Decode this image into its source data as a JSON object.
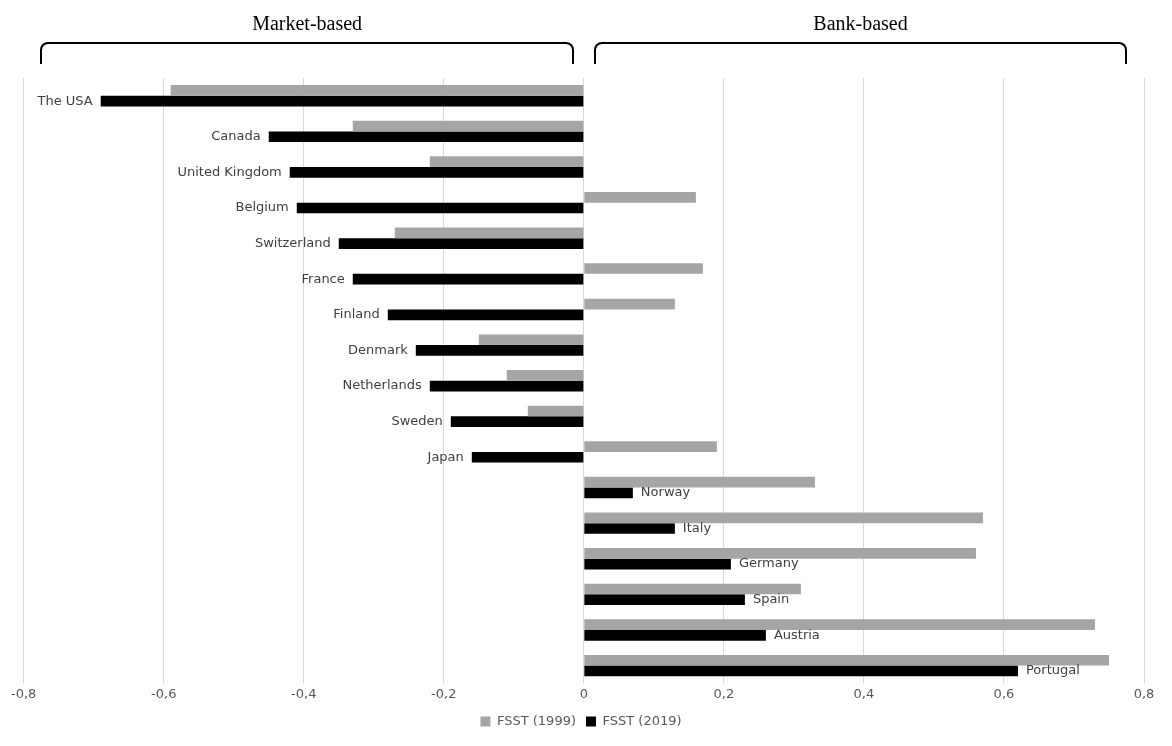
{
  "chart_data": {
    "type": "bar",
    "orientation": "horizontal",
    "categories": [
      "The USA",
      "Canada",
      "United Kingdom",
      "Belgium",
      "Switzerland",
      "France",
      "Finland",
      "Denmark",
      "Netherlands",
      "Sweden",
      "Japan",
      "Norway",
      "Italy",
      "Germany",
      "Spain",
      "Austria",
      "Portugal"
    ],
    "series": [
      {
        "name": "FSST (1999)",
        "color": "#a5a5a5",
        "values": [
          -0.59,
          -0.33,
          -0.22,
          0.16,
          -0.27,
          0.17,
          0.13,
          -0.15,
          -0.11,
          -0.08,
          0.19,
          0.33,
          0.57,
          0.56,
          0.31,
          0.73,
          0.75
        ]
      },
      {
        "name": "FSST (2019)",
        "color": "#000000",
        "values": [
          -0.69,
          -0.45,
          -0.42,
          -0.41,
          -0.35,
          -0.33,
          -0.28,
          -0.24,
          -0.22,
          -0.19,
          -0.16,
          0.07,
          0.13,
          0.21,
          0.23,
          0.26,
          0.62
        ]
      }
    ],
    "xlim": [
      -0.8,
      0.8
    ],
    "xticks": [
      {
        "value": -0.8,
        "label": "-0,8"
      },
      {
        "value": -0.6,
        "label": "-0,6"
      },
      {
        "value": -0.4,
        "label": "-0,4"
      },
      {
        "value": -0.2,
        "label": "-0,2"
      },
      0,
      {
        "value": 0.2,
        "label": "0,2"
      },
      {
        "value": 0.4,
        "label": "0,4"
      },
      {
        "value": 0.6,
        "label": "0,6"
      },
      {
        "value": 0.8,
        "label": "0,8"
      }
    ],
    "annotations": [
      "Market-based",
      "Bank-based"
    ],
    "grid": "x",
    "legend": "bottom"
  }
}
